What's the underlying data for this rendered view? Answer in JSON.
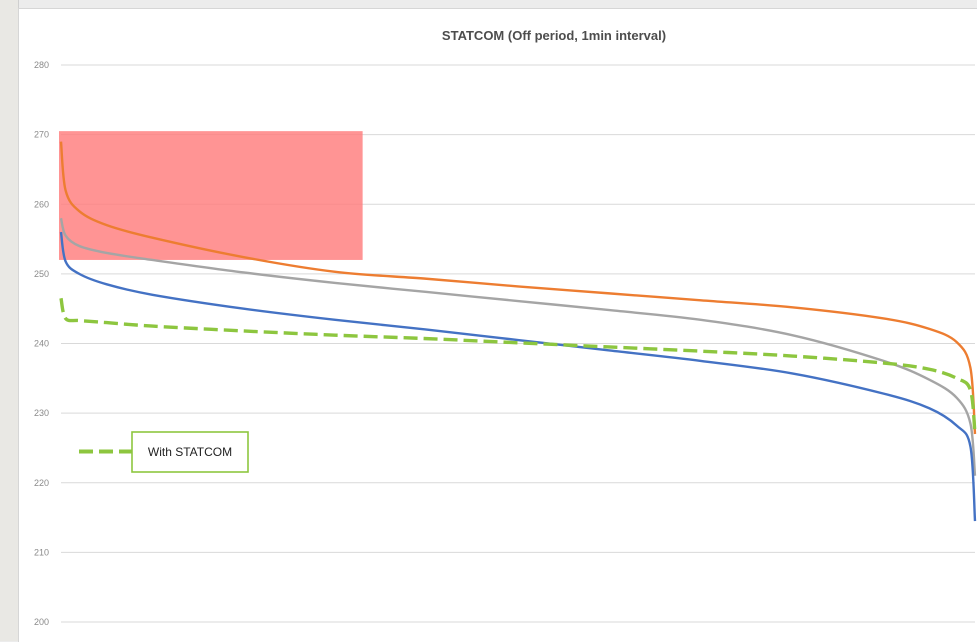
{
  "chart_data": {
    "type": "line",
    "title": "STATCOM (Off period, 1min interval)",
    "xlabel": "",
    "ylabel": "",
    "ylim": [
      200,
      280
    ],
    "yticks": [
      200,
      210,
      220,
      230,
      240,
      250,
      260,
      270,
      280
    ],
    "grid": true,
    "x": [
      0,
      0.005,
      0.02,
      0.05,
      0.1,
      0.2,
      0.3,
      0.4,
      0.5,
      0.6,
      0.7,
      0.8,
      0.9,
      0.95,
      0.98,
      0.995,
      1.0
    ],
    "series": [
      {
        "color": "#ed7d31",
        "style": "solid",
        "values": [
          269,
          262,
          259,
          257,
          255.2,
          252.4,
          250.3,
          249.3,
          248.2,
          247.2,
          246.2,
          245.2,
          243.6,
          242.1,
          240.2,
          236.5,
          227
        ]
      },
      {
        "color": "#a5a5a5",
        "style": "solid",
        "values": [
          258,
          255.5,
          254,
          253,
          252,
          250.2,
          248.7,
          247.4,
          246.1,
          244.8,
          243.4,
          241.2,
          237.5,
          234.8,
          232.2,
          228.5,
          221
        ]
      },
      {
        "color": "#4472c4",
        "style": "solid",
        "values": [
          256,
          251.8,
          250,
          248.5,
          247,
          245,
          243.4,
          242,
          240.5,
          239,
          237.5,
          235.7,
          232.8,
          230.7,
          228.2,
          225.2,
          214.5
        ]
      },
      {
        "name": "With STATCOM",
        "color": "#8dc63f",
        "style": "dashed",
        "values": [
          246.5,
          243.6,
          243.3,
          243,
          242.5,
          241.8,
          241.2,
          240.7,
          240.1,
          239.5,
          238.9,
          238.2,
          237.2,
          236.3,
          235,
          233.3,
          227
        ]
      }
    ],
    "highlight": {
      "color": "#ff7c7c",
      "x_range": [
        0,
        0.33
      ],
      "y_range": [
        252,
        270.5
      ]
    },
    "legend": {
      "position": "bottom-left",
      "entries": [
        "With STATCOM"
      ]
    }
  }
}
